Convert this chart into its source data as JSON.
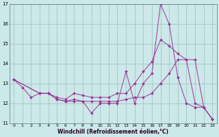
{
  "xlabel": "Windchill (Refroidissement éolien,°C)",
  "bg_color": "#cce8e8",
  "grid_color": "#9bbfbf",
  "line_color": "#993399",
  "ylim": [
    11,
    17
  ],
  "xlim": [
    -0.5,
    23.5
  ],
  "yticks": [
    11,
    12,
    13,
    14,
    15,
    16,
    17
  ],
  "xticks": [
    0,
    1,
    2,
    3,
    4,
    5,
    6,
    7,
    8,
    9,
    10,
    11,
    12,
    13,
    14,
    15,
    16,
    17,
    18,
    19,
    20,
    21,
    22,
    23
  ],
  "series1_x": [
    0,
    1,
    2,
    3,
    4,
    5,
    6,
    7,
    8,
    9,
    10,
    11,
    12,
    13,
    14,
    15,
    16,
    17,
    18,
    19,
    20,
    21,
    22,
    23
  ],
  "series1_y": [
    13.2,
    12.8,
    12.3,
    12.5,
    12.5,
    12.2,
    12.1,
    12.2,
    12.1,
    11.5,
    12.0,
    12.0,
    12.0,
    13.6,
    12.0,
    13.0,
    13.5,
    17.0,
    16.0,
    13.3,
    12.0,
    11.8,
    11.8,
    11.2
  ],
  "series2_x": [
    0,
    3,
    4,
    5,
    6,
    7,
    8,
    9,
    10,
    11,
    12,
    13,
    14,
    15,
    16,
    17,
    18,
    19,
    20,
    21,
    22,
    23
  ],
  "series2_y": [
    13.2,
    12.5,
    12.5,
    12.3,
    12.2,
    12.5,
    12.4,
    12.3,
    12.3,
    12.3,
    12.5,
    12.5,
    13.0,
    13.6,
    14.1,
    15.2,
    14.9,
    14.5,
    14.2,
    12.0,
    11.8,
    11.2
  ],
  "series3_x": [
    0,
    3,
    4,
    5,
    6,
    7,
    8,
    9,
    10,
    11,
    12,
    13,
    14,
    15,
    16,
    17,
    18,
    19,
    20,
    21,
    22,
    23
  ],
  "series3_y": [
    13.2,
    12.5,
    12.5,
    12.2,
    12.1,
    12.1,
    12.1,
    12.1,
    12.1,
    12.1,
    12.1,
    12.2,
    12.3,
    12.3,
    12.5,
    13.0,
    13.5,
    14.2,
    14.2,
    14.2,
    11.8,
    11.2
  ]
}
